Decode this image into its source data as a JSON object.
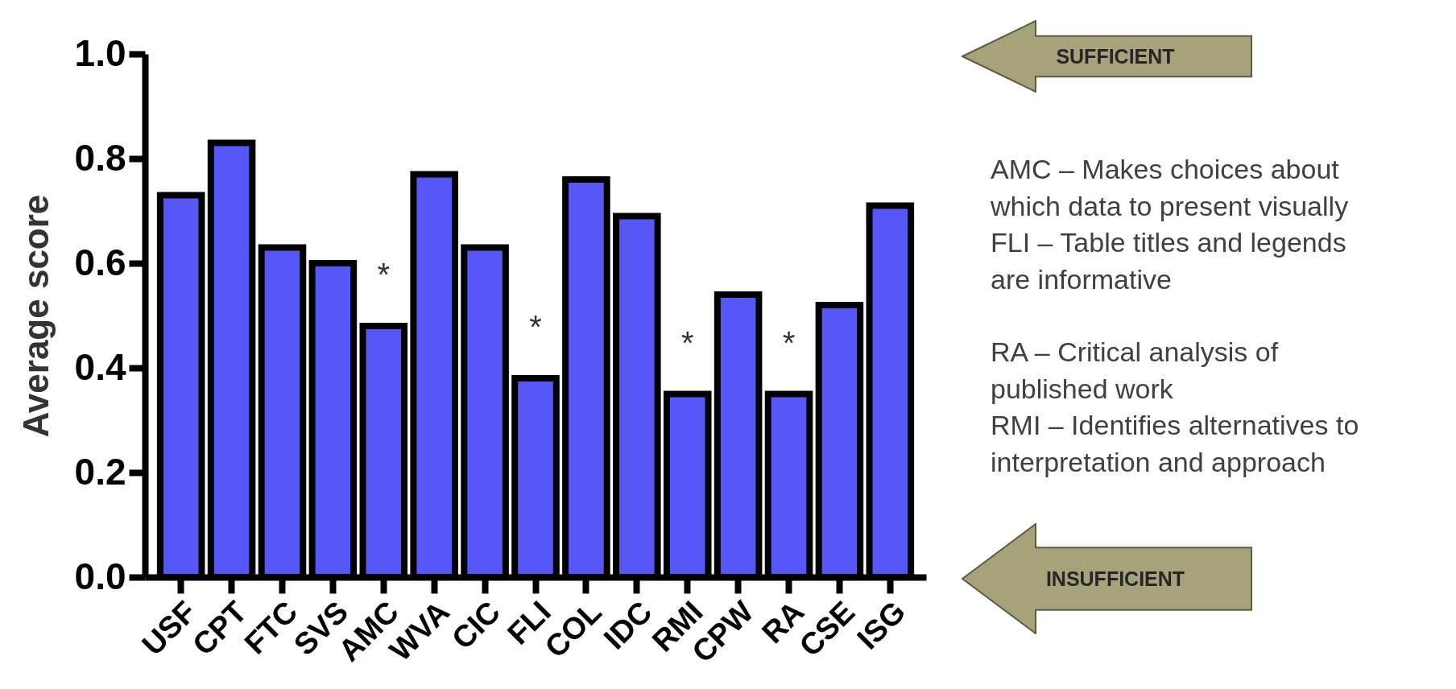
{
  "chart_data": {
    "type": "bar",
    "ylabel": "Average score",
    "categories": [
      "USF",
      "CPT",
      "FTC",
      "SVS",
      "AMC",
      "WVA",
      "CIC",
      "FLI",
      "COL",
      "IDC",
      "RMI",
      "CPW",
      "RA",
      "CSE",
      "ISG"
    ],
    "values": [
      0.73,
      0.83,
      0.63,
      0.6,
      0.48,
      0.77,
      0.63,
      0.38,
      0.76,
      0.69,
      0.35,
      0.54,
      0.35,
      0.52,
      0.71
    ],
    "value_labels": [
      null,
      null,
      null,
      null,
      "*",
      null,
      null,
      "*",
      null,
      null,
      "*",
      null,
      "*",
      null,
      null
    ],
    "color": "#5757f7",
    "ylim": [
      0,
      1
    ],
    "yticks": [
      {
        "value": 0,
        "label": "0.0"
      },
      0.2,
      0.4,
      0.6,
      0.8,
      {
        "value": 1,
        "label": "1.0"
      }
    ],
    "annotations": [
      "SUFFICIENT",
      "AMC – Makes choices about which data to present visually",
      "FLI – Table titles and legends are informative",
      "RA – Critical analysis of published work",
      "RMI – Identifies alternatives to interpretation and approach",
      "INSUFFICIENT"
    ]
  }
}
